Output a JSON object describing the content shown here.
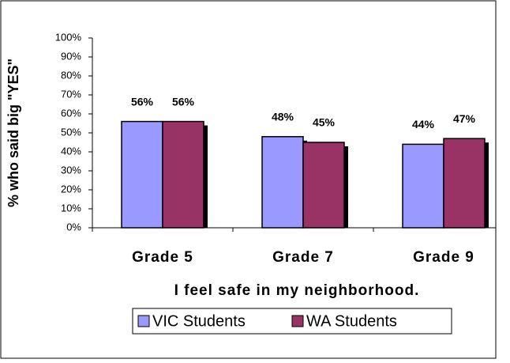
{
  "chart_data": {
    "type": "bar",
    "ylabel": "% who said big \"YES\"",
    "xlabel": "I feel safe in my neighborhood.",
    "categories": [
      "Grade 5",
      "Grade 7",
      "Grade 9"
    ],
    "series": [
      {
        "name": "VIC Students",
        "color": "#9999ff",
        "values": [
          56,
          48,
          44
        ],
        "value_labels": [
          "56%",
          "48%",
          "44%"
        ]
      },
      {
        "name": "WA Students",
        "color": "#993366",
        "values": [
          56,
          45,
          47
        ],
        "value_labels": [
          "56%",
          "45%",
          "47%"
        ]
      }
    ],
    "ylim": [
      0,
      100
    ],
    "yticks": [
      {
        "value": 0,
        "label": "0%"
      },
      {
        "value": 10,
        "label": "10%"
      },
      {
        "value": 20,
        "label": "20%"
      },
      {
        "value": 30,
        "label": "30%"
      },
      {
        "value": 40,
        "label": "40%"
      },
      {
        "value": 50,
        "label": "50%"
      },
      {
        "value": 60,
        "label": "60%"
      },
      {
        "value": 70,
        "label": "70%"
      },
      {
        "value": 80,
        "label": "80%"
      },
      {
        "value": 90,
        "label": "90%"
      },
      {
        "value": 100,
        "label": "100%"
      }
    ],
    "legend": "bottom",
    "grid": false
  }
}
